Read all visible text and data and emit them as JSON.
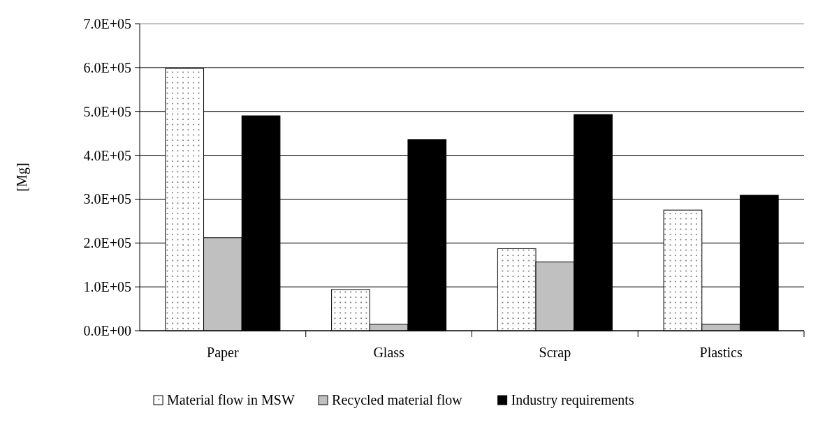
{
  "chart_data": {
    "type": "bar",
    "ylabel": "[Mg]",
    "categories": [
      "Paper",
      "Glass",
      "Scrap",
      "Plastics"
    ],
    "series": [
      {
        "name": "Material flow in MSW",
        "color": "#ffffff",
        "values": [
          598000,
          94000,
          187000,
          275000
        ]
      },
      {
        "name": "Recycled material flow",
        "color": "#c0c0c0",
        "values": [
          212000,
          15000,
          157000,
          15000
        ]
      },
      {
        "name": "Industry requirements",
        "color": "#000000",
        "values": [
          490000,
          436000,
          493000,
          309000
        ]
      }
    ],
    "ylim": [
      0,
      700000
    ],
    "yticks": [
      {
        "value": 0,
        "label": "0.0E+00"
      },
      {
        "value": 100000,
        "label": "1.0E+05"
      },
      {
        "value": 200000,
        "label": "2.0E+05"
      },
      {
        "value": 300000,
        "label": "3.0E+05"
      },
      {
        "value": 400000,
        "label": "4.0E+05"
      },
      {
        "value": 500000,
        "label": "5.0E+05"
      },
      {
        "value": 600000,
        "label": "6.0E+05"
      },
      {
        "value": 700000,
        "label": "7.0E+05"
      }
    ],
    "grid": "y",
    "legend": "bottom"
  }
}
